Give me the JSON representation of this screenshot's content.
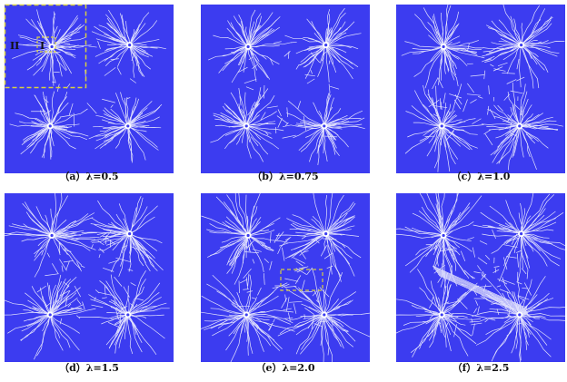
{
  "figure": {
    "panels": [
      {
        "caption": "（a）λ=0.5",
        "labels": [
          "II",
          "I"
        ]
      },
      {
        "caption": "（b）λ=0.75"
      },
      {
        "caption": "（c）λ=1.0"
      },
      {
        "caption": "（d）λ=1.5"
      },
      {
        "caption": "（e）λ=2.0"
      },
      {
        "caption": "（f）λ=2.5"
      }
    ]
  }
}
